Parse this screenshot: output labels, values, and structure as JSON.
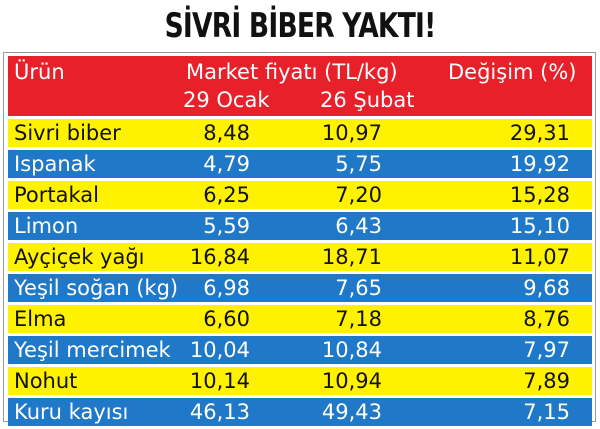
{
  "title": "SİVRİ BİBER YAKTI!",
  "colors": {
    "header": "#e8202a",
    "row_yellow": "#fff200",
    "row_blue": "#1f78c8"
  },
  "chart_data": {
    "type": "table",
    "title": "SİVRİ BİBER YAKTI!",
    "columns": {
      "product": "Ürün",
      "market_price": "Market fiyatı (TL/kg)",
      "date1": "29 Ocak",
      "date2": "26 Şubat",
      "change": "Değişim (%)"
    },
    "rows": [
      {
        "product": "Sivri biber",
        "jan29": "8,48",
        "feb26": "10,97",
        "change": "29,31"
      },
      {
        "product": "Ispanak",
        "jan29": "4,79",
        "feb26": "5,75",
        "change": "19,92"
      },
      {
        "product": "Portakal",
        "jan29": "6,25",
        "feb26": "7,20",
        "change": "15,28"
      },
      {
        "product": "Limon",
        "jan29": "5,59",
        "feb26": "6,43",
        "change": "15,10"
      },
      {
        "product": "Ayçiçek yağı",
        "jan29": "16,84",
        "feb26": "18,71",
        "change": "11,07"
      },
      {
        "product": "Yeşil soğan (kg)",
        "jan29": "6,98",
        "feb26": "7,65",
        "change": "9,68"
      },
      {
        "product": "Elma",
        "jan29": "6,60",
        "feb26": "7,18",
        "change": "8,76"
      },
      {
        "product": "Yeşil mercimek",
        "jan29": "10,04",
        "feb26": "10,84",
        "change": "7,97"
      },
      {
        "product": "Nohut",
        "jan29": "10,14",
        "feb26": "10,94",
        "change": "7,89"
      },
      {
        "product": "Kuru kayısı",
        "jan29": "46,13",
        "feb26": "49,43",
        "change": "7,15"
      }
    ]
  }
}
